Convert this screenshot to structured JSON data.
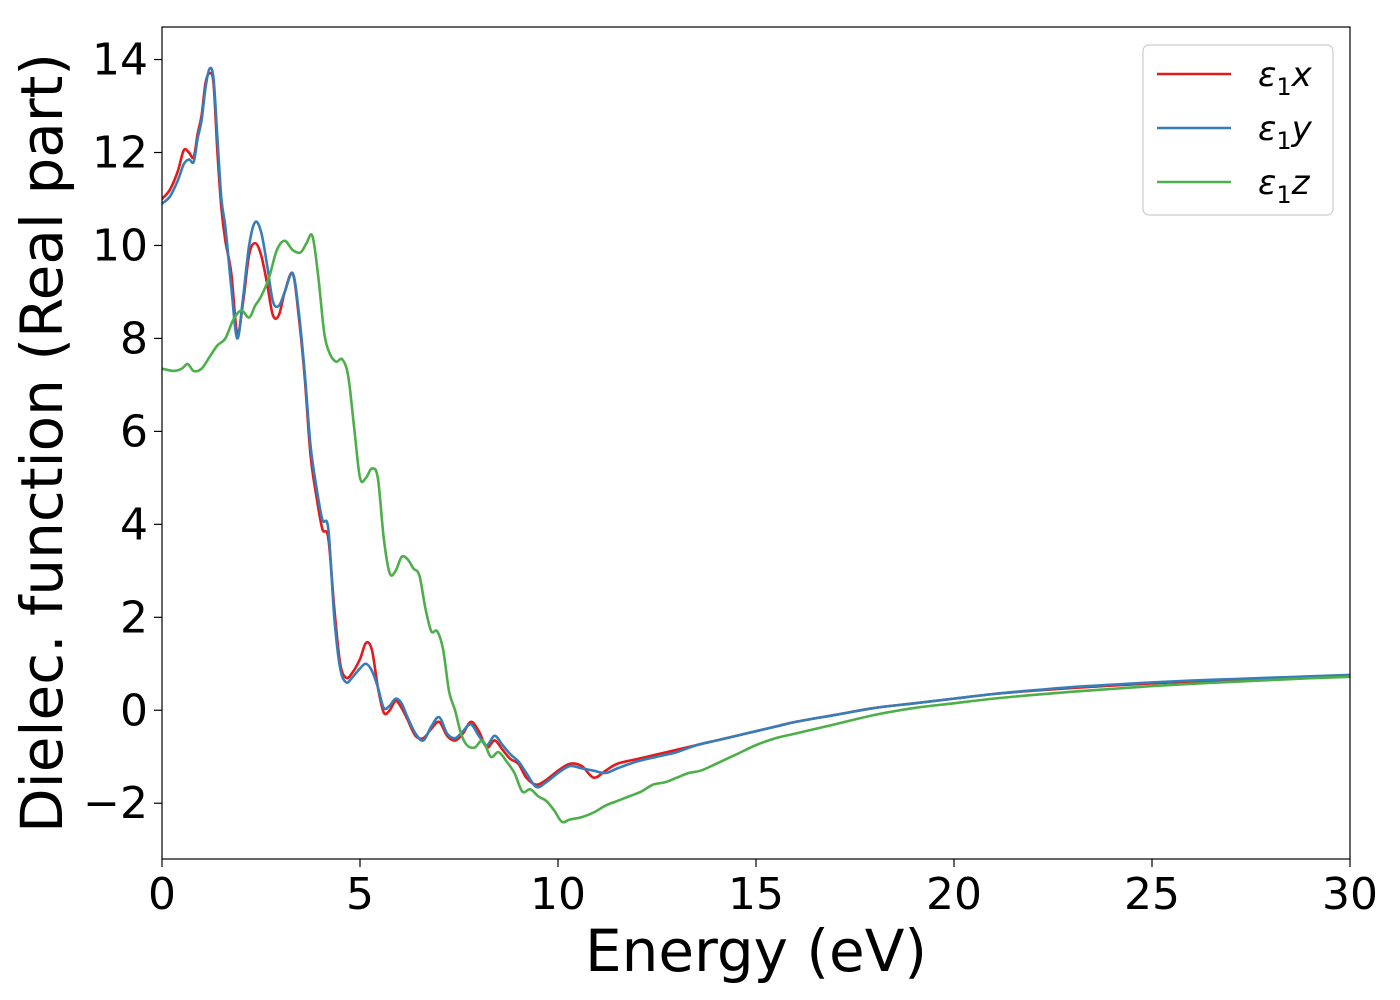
{
  "chart_data": {
    "type": "line",
    "xlabel": "Energy (eV)",
    "ylabel": "Dielec. function (Real part)",
    "xlim": [
      0,
      30
    ],
    "ylim": [
      -3.2,
      14.7
    ],
    "xticks": [
      0,
      5,
      10,
      15,
      20,
      25,
      30
    ],
    "yticks": [
      -2,
      0,
      2,
      4,
      6,
      8,
      10,
      12,
      14
    ],
    "ytick_labels": [
      "−2",
      "0",
      "2",
      "4",
      "6",
      "8",
      "10",
      "12",
      "14"
    ],
    "grid": false,
    "legend_position": "top-right",
    "series": [
      {
        "name": "ε1x",
        "legend_base": "ε",
        "legend_sub": "1",
        "legend_suffix": "x",
        "color": "#e41a1c",
        "x": [
          0,
          0.2,
          0.4,
          0.55,
          0.68,
          0.8,
          0.9,
          1.0,
          1.1,
          1.2,
          1.3,
          1.4,
          1.5,
          1.6,
          1.75,
          1.9,
          2.05,
          2.2,
          2.35,
          2.5,
          2.65,
          2.8,
          2.95,
          3.1,
          3.3,
          3.45,
          3.6,
          3.75,
          3.9,
          4.05,
          4.2,
          4.35,
          4.5,
          4.65,
          4.8,
          5.0,
          5.15,
          5.3,
          5.45,
          5.6,
          5.75,
          5.9,
          6.05,
          6.2,
          6.4,
          6.6,
          6.8,
          7.0,
          7.2,
          7.4,
          7.6,
          7.8,
          8.0,
          8.2,
          8.4,
          8.6,
          8.8,
          9.0,
          9.2,
          9.45,
          9.7,
          10.0,
          10.3,
          10.6,
          10.9,
          11.2,
          11.5,
          12.0,
          12.5,
          13.0,
          13.5,
          14.0,
          14.5,
          15.0,
          15.5,
          16.0,
          17.0,
          18.0,
          19.0,
          20.0,
          21.0,
          22.0,
          23.0,
          24.0,
          25.0,
          26.0,
          27.0,
          28.0,
          29.0,
          30.0
        ],
        "y": [
          11.0,
          11.2,
          11.6,
          12.05,
          12.0,
          11.9,
          12.4,
          12.8,
          13.5,
          13.7,
          13.5,
          12.0,
          10.8,
          10.1,
          9.4,
          8.1,
          8.8,
          9.8,
          10.05,
          9.8,
          9.2,
          8.5,
          8.5,
          9.0,
          9.4,
          8.5,
          7.2,
          5.5,
          4.6,
          3.9,
          3.7,
          2.2,
          1.0,
          0.7,
          0.8,
          1.1,
          1.45,
          1.3,
          0.5,
          -0.05,
          0.0,
          0.2,
          0.05,
          -0.2,
          -0.55,
          -0.6,
          -0.4,
          -0.25,
          -0.55,
          -0.65,
          -0.5,
          -0.25,
          -0.45,
          -0.8,
          -0.65,
          -0.85,
          -1.05,
          -1.15,
          -1.45,
          -1.6,
          -1.5,
          -1.3,
          -1.15,
          -1.2,
          -1.45,
          -1.3,
          -1.15,
          -1.05,
          -0.95,
          -0.85,
          -0.75,
          -0.65,
          -0.55,
          -0.45,
          -0.35,
          -0.25,
          -0.1,
          0.05,
          0.15,
          0.25,
          0.35,
          0.42,
          0.48,
          0.53,
          0.58,
          0.62,
          0.65,
          0.68,
          0.71,
          0.74
        ]
      },
      {
        "name": "ε1y",
        "legend_base": "ε",
        "legend_sub": "1",
        "legend_suffix": "y",
        "color": "#377eb8",
        "x": [
          0,
          0.2,
          0.4,
          0.55,
          0.68,
          0.8,
          0.9,
          1.0,
          1.1,
          1.2,
          1.3,
          1.4,
          1.5,
          1.6,
          1.75,
          1.9,
          2.05,
          2.2,
          2.35,
          2.5,
          2.65,
          2.8,
          2.95,
          3.1,
          3.3,
          3.45,
          3.6,
          3.75,
          3.9,
          4.05,
          4.2,
          4.35,
          4.5,
          4.65,
          4.8,
          5.0,
          5.15,
          5.3,
          5.45,
          5.6,
          5.75,
          5.9,
          6.05,
          6.2,
          6.4,
          6.6,
          6.8,
          7.0,
          7.2,
          7.4,
          7.6,
          7.8,
          8.0,
          8.2,
          8.4,
          8.6,
          8.8,
          9.0,
          9.2,
          9.45,
          9.7,
          10.0,
          10.3,
          10.6,
          10.9,
          11.2,
          11.5,
          12.0,
          12.5,
          13.0,
          13.5,
          14.0,
          14.5,
          15.0,
          15.5,
          16.0,
          17.0,
          18.0,
          19.0,
          20.0,
          21.0,
          22.0,
          23.0,
          24.0,
          25.0,
          26.0,
          27.0,
          28.0,
          29.0,
          30.0
        ],
        "y": [
          10.9,
          11.05,
          11.4,
          11.75,
          11.85,
          11.8,
          12.3,
          12.7,
          13.4,
          13.8,
          13.6,
          12.3,
          11.0,
          10.4,
          9.1,
          8.0,
          8.9,
          10.0,
          10.5,
          10.3,
          9.6,
          8.8,
          8.7,
          9.0,
          9.4,
          8.6,
          7.3,
          5.7,
          4.8,
          4.1,
          3.9,
          2.0,
          0.9,
          0.6,
          0.7,
          0.9,
          1.0,
          0.85,
          0.5,
          0.05,
          0.1,
          0.25,
          0.15,
          -0.15,
          -0.5,
          -0.65,
          -0.35,
          -0.15,
          -0.5,
          -0.6,
          -0.45,
          -0.3,
          -0.55,
          -0.75,
          -0.55,
          -0.75,
          -0.95,
          -1.1,
          -1.35,
          -1.65,
          -1.55,
          -1.35,
          -1.2,
          -1.25,
          -1.3,
          -1.35,
          -1.25,
          -1.1,
          -1.0,
          -0.9,
          -0.75,
          -0.65,
          -0.55,
          -0.45,
          -0.35,
          -0.25,
          -0.1,
          0.05,
          0.15,
          0.25,
          0.35,
          0.43,
          0.5,
          0.55,
          0.6,
          0.64,
          0.67,
          0.7,
          0.73,
          0.76
        ]
      },
      {
        "name": "ε1z",
        "legend_base": "ε",
        "legend_sub": "1",
        "legend_suffix": "z",
        "color": "#4daf4a",
        "x": [
          0,
          0.3,
          0.5,
          0.65,
          0.8,
          1.0,
          1.2,
          1.4,
          1.6,
          1.8,
          2.0,
          2.2,
          2.35,
          2.5,
          2.7,
          2.9,
          3.1,
          3.3,
          3.5,
          3.65,
          3.8,
          3.95,
          4.1,
          4.25,
          4.4,
          4.55,
          4.7,
          4.85,
          5.0,
          5.15,
          5.3,
          5.45,
          5.6,
          5.75,
          5.9,
          6.05,
          6.2,
          6.35,
          6.5,
          6.65,
          6.8,
          6.95,
          7.1,
          7.25,
          7.4,
          7.55,
          7.7,
          7.9,
          8.1,
          8.3,
          8.5,
          8.7,
          8.9,
          9.1,
          9.3,
          9.5,
          9.7,
          9.9,
          10.1,
          10.3,
          10.6,
          10.9,
          11.2,
          11.5,
          11.8,
          12.1,
          12.4,
          12.7,
          13.0,
          13.3,
          13.6,
          14.0,
          14.5,
          15.0,
          15.5,
          16.0,
          17.0,
          18.0,
          19.0,
          20.0,
          21.0,
          22.0,
          23.0,
          24.0,
          25.0,
          26.0,
          27.0,
          28.0,
          29.0,
          30.0
        ],
        "y": [
          7.35,
          7.3,
          7.35,
          7.45,
          7.3,
          7.35,
          7.6,
          7.85,
          8.0,
          8.4,
          8.6,
          8.45,
          8.7,
          8.9,
          9.3,
          9.9,
          10.1,
          9.9,
          9.85,
          10.05,
          10.2,
          9.3,
          8.1,
          7.65,
          7.5,
          7.55,
          7.2,
          6.1,
          5.0,
          5.0,
          5.2,
          5.0,
          3.7,
          2.95,
          3.0,
          3.3,
          3.25,
          3.05,
          2.9,
          2.2,
          1.7,
          1.7,
          1.3,
          0.4,
          0.0,
          -0.5,
          -0.75,
          -0.8,
          -0.65,
          -1.0,
          -0.9,
          -1.1,
          -1.35,
          -1.75,
          -1.7,
          -1.85,
          -1.95,
          -2.15,
          -2.4,
          -2.35,
          -2.3,
          -2.2,
          -2.05,
          -1.95,
          -1.85,
          -1.75,
          -1.6,
          -1.55,
          -1.45,
          -1.35,
          -1.3,
          -1.15,
          -0.95,
          -0.75,
          -0.6,
          -0.5,
          -0.3,
          -0.1,
          0.05,
          0.15,
          0.25,
          0.33,
          0.4,
          0.46,
          0.52,
          0.57,
          0.61,
          0.65,
          0.69,
          0.72
        ]
      }
    ]
  }
}
